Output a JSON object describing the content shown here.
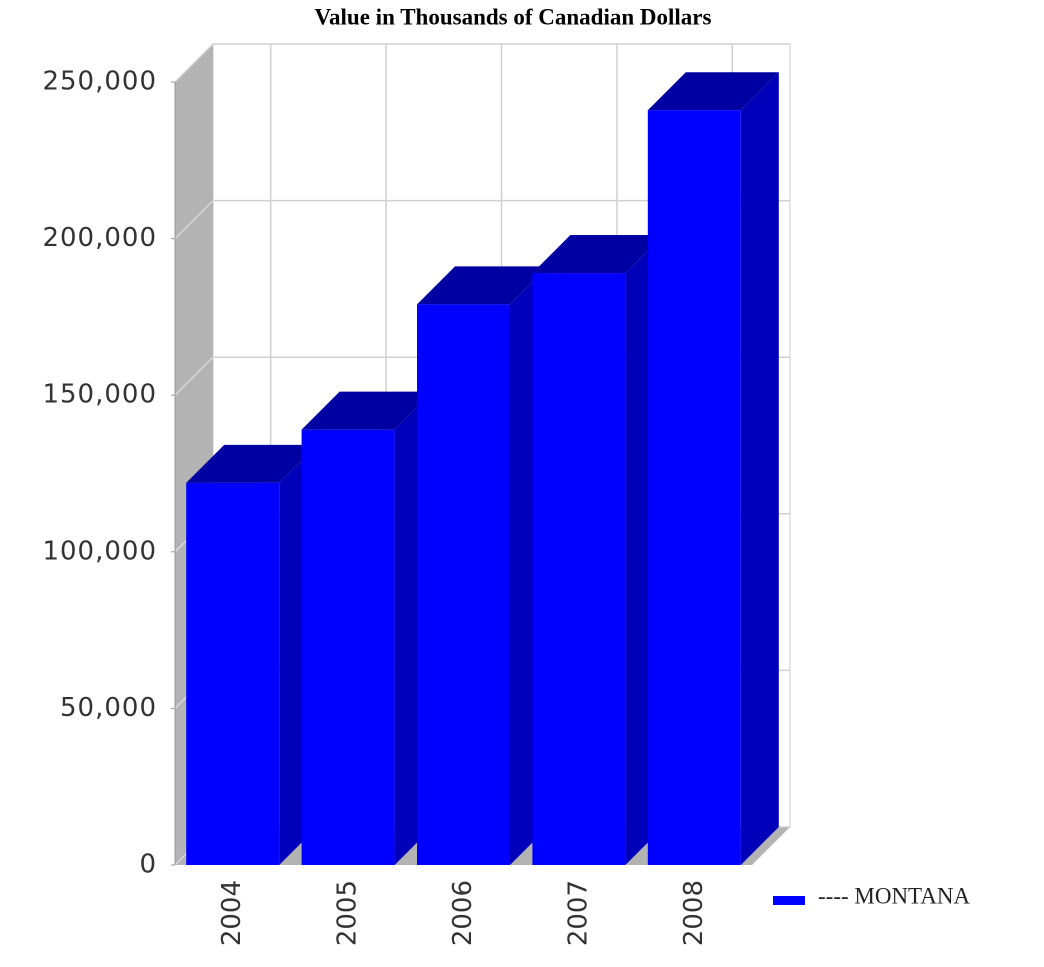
{
  "chart_data": {
    "type": "bar3d",
    "title": "Value in Thousands of Canadian Dollars",
    "categories": [
      "2004",
      "2005",
      "2006",
      "2007",
      "2008"
    ],
    "series": [
      {
        "name": "---- MONTANA",
        "color": "#0000ff",
        "values": [
          122000,
          139000,
          179000,
          189000,
          241000
        ]
      }
    ],
    "ylim": [
      0,
      250000
    ],
    "yticks": [
      0,
      {
        "value": 50000,
        "label": "50,000"
      },
      {
        "value": 100000,
        "label": "100,000"
      },
      {
        "value": 150000,
        "label": "150,000"
      },
      {
        "value": 200000,
        "label": "200,000"
      },
      {
        "value": 250000,
        "label": "250,000"
      }
    ],
    "grid": true,
    "legend": "right"
  }
}
